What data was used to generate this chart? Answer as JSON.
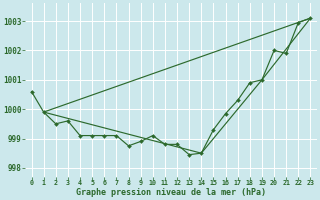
{
  "bg_color": "#cce8ec",
  "grid_color": "#ffffff",
  "line_color": "#2d6a2d",
  "title": "Graphe pression niveau de la mer (hPa)",
  "xlim": [
    -0.5,
    23.5
  ],
  "ylim": [
    997.7,
    1003.6
  ],
  "yticks": [
    998,
    999,
    1000,
    1001,
    1002,
    1003
  ],
  "xticks": [
    0,
    1,
    2,
    3,
    4,
    5,
    6,
    7,
    8,
    9,
    10,
    11,
    12,
    13,
    14,
    15,
    16,
    17,
    18,
    19,
    20,
    21,
    22,
    23
  ],
  "main_line": {
    "x": [
      0,
      1,
      2,
      3,
      4,
      5,
      6,
      7,
      8,
      9,
      10,
      11,
      12,
      13,
      14,
      15,
      16,
      17,
      18,
      19,
      20,
      21,
      22,
      23
    ],
    "y": [
      1000.6,
      999.9,
      999.5,
      999.6,
      999.1,
      999.1,
      999.1,
      999.1,
      998.75,
      998.9,
      999.1,
      998.8,
      998.8,
      998.45,
      998.5,
      999.3,
      999.85,
      1000.3,
      1000.9,
      1001.0,
      1002.0,
      1001.9,
      1002.95,
      1003.1
    ]
  },
  "envelope_high": {
    "x": [
      1,
      23
    ],
    "y": [
      999.9,
      1003.1
    ]
  },
  "envelope_low": {
    "x": [
      1,
      14,
      19,
      23
    ],
    "y": [
      999.9,
      998.5,
      1001.0,
      1003.1
    ]
  }
}
